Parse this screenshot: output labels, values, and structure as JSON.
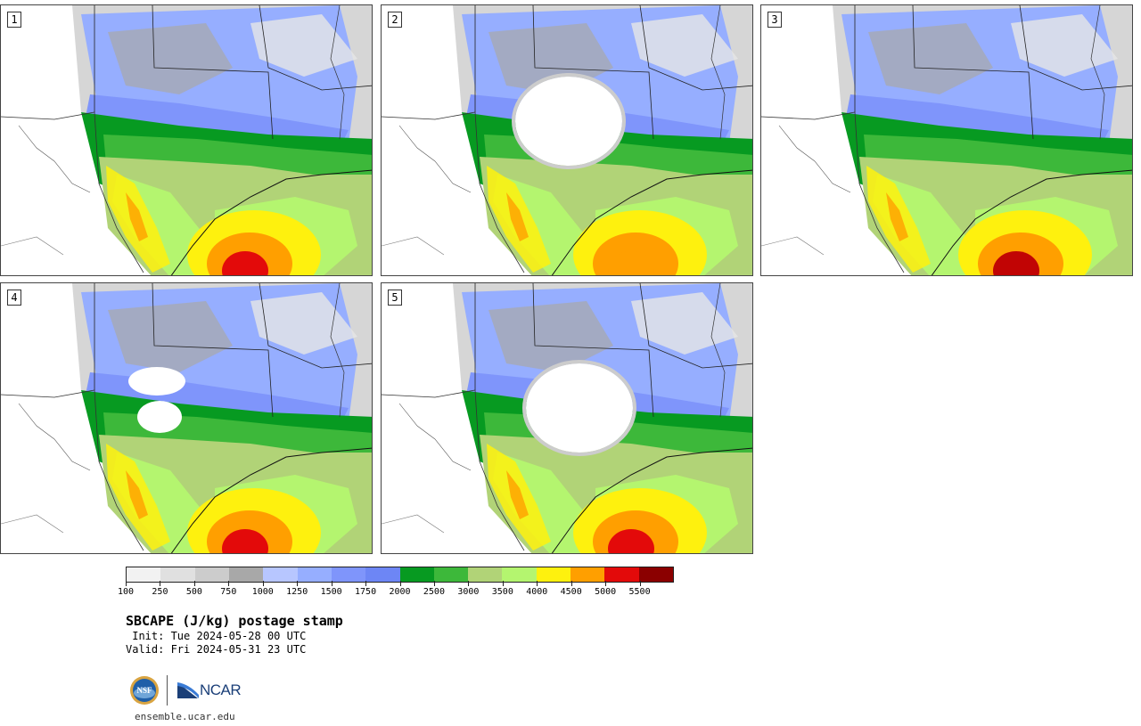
{
  "figure": {
    "title": "SBCAPE (J/kg) postage stamp",
    "init": " Init: Tue 2024-05-28 00 UTC",
    "valid": "Valid: Fri 2024-05-31 23 UTC",
    "website": "ensemble.ucar.edu"
  },
  "panels": [
    {
      "label": "1",
      "hot_core": "#e30a0a"
    },
    {
      "label": "2",
      "hot_core": "#ff9f00"
    },
    {
      "label": "3",
      "hot_core": "#c10404"
    },
    {
      "label": "4",
      "hot_core": "#e30a0a"
    },
    {
      "label": "5",
      "hot_core": "#e30a0a"
    }
  ],
  "colorbar": {
    "colors": [
      "#f2f2f2",
      "#e0e0e0",
      "#cccccc",
      "#a8a8a8",
      "#b7c6ff",
      "#96aeff",
      "#7f95fb",
      "#6d86f5",
      "#079a21",
      "#3db83a",
      "#b1d377",
      "#b4f56f",
      "#fef10e",
      "#ff9f00",
      "#e30a0a",
      "#8b0000"
    ],
    "ticks": [
      "100",
      "250",
      "500",
      "750",
      "1000",
      "1250",
      "1500",
      "1750",
      "2000",
      "2500",
      "3000",
      "3500",
      "4000",
      "4500",
      "5000",
      "5500"
    ]
  },
  "logos": {
    "nsf": "NSF",
    "ncar": "NCAR"
  }
}
